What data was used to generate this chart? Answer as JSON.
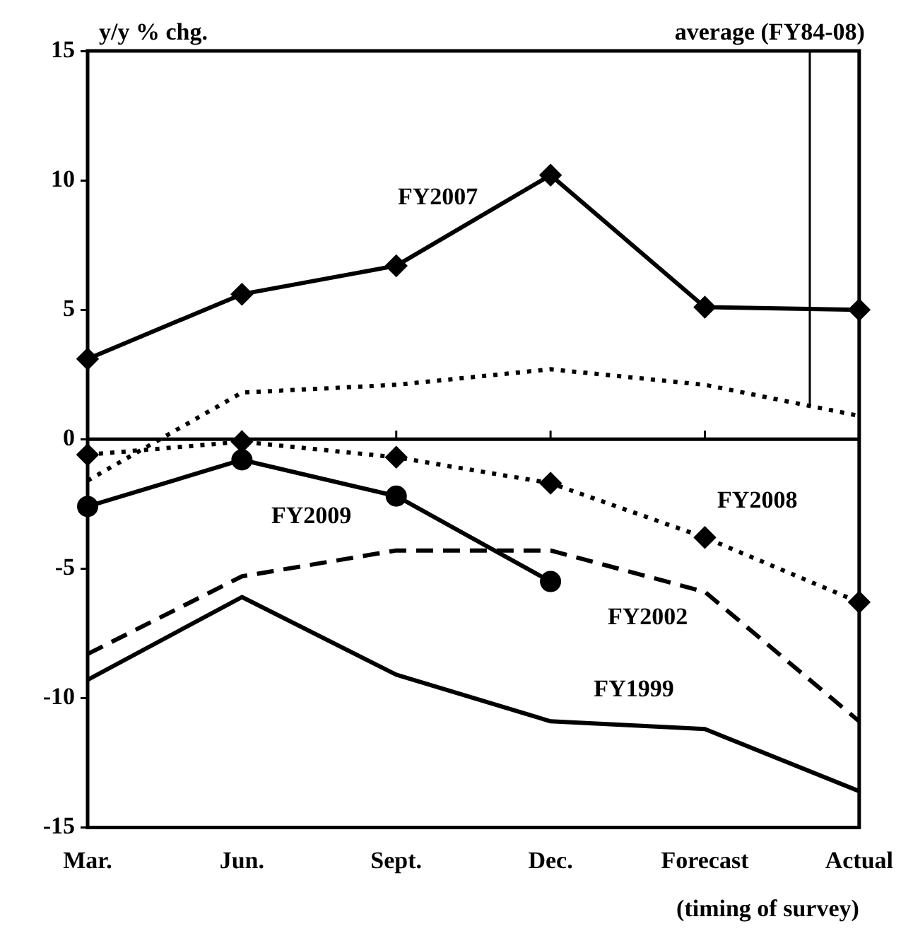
{
  "chart_data": {
    "type": "line",
    "xlabel": "(timing of survey)",
    "ylabel": "y/y % chg.",
    "categories": [
      "Mar.",
      "Jun.",
      "Sept.",
      "Dec.",
      "Forecast",
      "Actual"
    ],
    "ylim": [
      -15,
      15
    ],
    "yticks": [
      -15,
      -10,
      -5,
      0,
      5,
      10,
      15
    ],
    "legend": false,
    "series": [
      {
        "name": "average (FY84-08)",
        "color": "#000000",
        "line_style": "dotted",
        "marker": "none",
        "values": [
          -1.6,
          1.8,
          2.1,
          2.7,
          2.1,
          0.9
        ]
      },
      {
        "name": "FY1999",
        "color": "#000000",
        "line_style": "solid",
        "marker": "none",
        "values": [
          -9.3,
          -6.1,
          -9.1,
          -10.9,
          -11.2,
          -13.6
        ]
      },
      {
        "name": "FY2002",
        "color": "#000000",
        "line_style": "dashed",
        "marker": "none",
        "values": [
          -8.3,
          -5.3,
          -4.3,
          -4.3,
          -5.9,
          -10.9
        ]
      },
      {
        "name": "FY2009",
        "color": "#000000",
        "line_style": "solid",
        "marker": "circle",
        "values": [
          -2.6,
          -0.8,
          -2.2,
          -5.5,
          null,
          null
        ]
      },
      {
        "name": "FY2008",
        "color": "#000000",
        "line_style": "dotted",
        "marker": "diamond",
        "values": [
          -0.6,
          -0.1,
          -0.7,
          -1.7,
          -3.8,
          -6.3
        ]
      },
      {
        "name": "FY2007",
        "color": "#000000",
        "line_style": "solid",
        "marker": "diamond",
        "values": [
          3.1,
          5.6,
          6.7,
          10.2,
          5.1,
          5.0
        ]
      }
    ]
  }
}
